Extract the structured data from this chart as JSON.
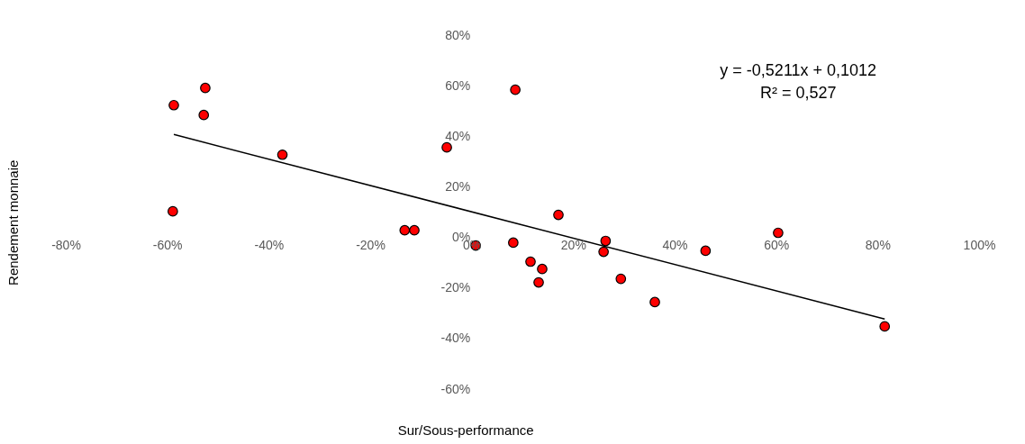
{
  "chart_data": {
    "type": "scatter",
    "xlabel": "Sur/Sous-performance",
    "ylabel": "Rendement monnaie",
    "annotations": [
      "y = -0,5211x + 0,1012",
      "R² = 0,527"
    ],
    "xlim": [
      -0.8,
      1.0
    ],
    "ylim": [
      -0.6,
      0.8
    ],
    "xticks": [
      {
        "value": -0.8,
        "label": "-80%"
      },
      {
        "value": -0.6,
        "label": "-60%"
      },
      {
        "value": -0.4,
        "label": "-40%"
      },
      {
        "value": -0.2,
        "label": "-20%"
      },
      {
        "value": 0,
        "label": "0%"
      },
      {
        "value": 0.2,
        "label": "20%"
      },
      {
        "value": 0.4,
        "label": "40%"
      },
      {
        "value": 0.6,
        "label": "60%"
      },
      {
        "value": 0.8,
        "label": "80%"
      },
      {
        "value": 1.0,
        "label": "100%"
      }
    ],
    "yticks": [
      {
        "value": -0.6,
        "label": "-60%"
      },
      {
        "value": -0.4,
        "label": "-40%"
      },
      {
        "value": -0.2,
        "label": "-20%"
      },
      {
        "value": 0,
        "label": "0%"
      },
      {
        "value": 0.2,
        "label": "20%"
      },
      {
        "value": 0.4,
        "label": "40%"
      },
      {
        "value": 0.6,
        "label": "60%"
      },
      {
        "value": 0.8,
        "label": "80%"
      }
    ],
    "grid": false,
    "series": [
      {
        "marker": "circle",
        "color": "#ff0000",
        "x": [
          -0.587,
          -0.525,
          -0.528,
          -0.589,
          -0.373,
          -0.132,
          -0.113,
          -0.049,
          0.086,
          0.008,
          0.082,
          0.116,
          0.139,
          0.132,
          0.171,
          0.264,
          0.26,
          0.294,
          0.361,
          0.461,
          0.604,
          0.814
        ],
        "values": [
          0.523,
          0.591,
          0.484,
          0.103,
          0.327,
          0.028,
          0.028,
          0.356,
          0.584,
          -0.032,
          -0.021,
          -0.096,
          -0.125,
          -0.178,
          0.089,
          -0.014,
          -0.057,
          -0.164,
          -0.256,
          -0.053,
          0.018,
          -0.352
        ]
      },
      {
        "type": "line",
        "color": "#000000",
        "x": [
          -0.587,
          0.814
        ],
        "values": [
          0.407,
          -0.323
        ]
      }
    ]
  }
}
